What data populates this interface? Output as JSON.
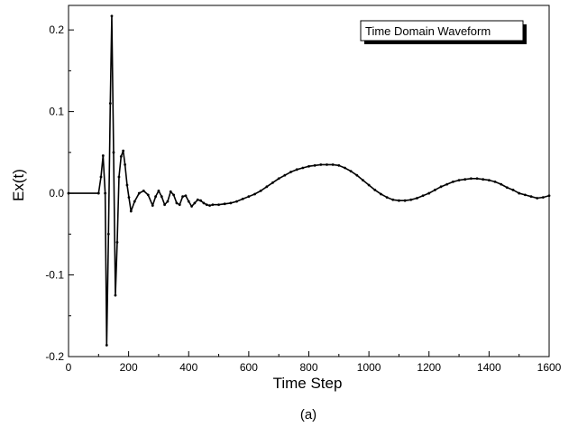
{
  "chart_data": {
    "type": "line",
    "title": "",
    "legend_label": "Time Domain Waveform",
    "legend_position": "top-right",
    "xlabel": "Time Step",
    "ylabel": "Ex(t)",
    "caption": "(a)",
    "xlim": [
      0,
      1600
    ],
    "ylim": [
      -0.2,
      0.23
    ],
    "xticks": [
      0,
      200,
      400,
      600,
      800,
      1000,
      1200,
      1400,
      1600
    ],
    "xtick_labels": [
      "0",
      "200",
      "400",
      "600",
      "800",
      "1000",
      "1200",
      "1400",
      "1600"
    ],
    "yticks": [
      -0.2,
      -0.1,
      0.0,
      0.1,
      0.2
    ],
    "ytick_labels": [
      "-0.2",
      "-0.1",
      "0.0",
      "0.1",
      "0.2"
    ],
    "grid": false,
    "series": [
      {
        "color": "#000000",
        "x": [
          0,
          100,
          108,
          115,
          122,
          127,
          133,
          139,
          144,
          150,
          156,
          162,
          168,
          175,
          182,
          188,
          195,
          201,
          208,
          220,
          235,
          250,
          265,
          280,
          290,
          300,
          310,
          320,
          330,
          340,
          350,
          360,
          370,
          380,
          390,
          400,
          410,
          420,
          430,
          440,
          450,
          460,
          470,
          480,
          500,
          520,
          540,
          560,
          580,
          600,
          620,
          640,
          660,
          680,
          700,
          720,
          740,
          760,
          780,
          800,
          820,
          840,
          860,
          880,
          900,
          920,
          940,
          960,
          980,
          1000,
          1020,
          1040,
          1060,
          1080,
          1100,
          1120,
          1140,
          1160,
          1180,
          1200,
          1220,
          1240,
          1260,
          1280,
          1300,
          1320,
          1340,
          1360,
          1380,
          1400,
          1420,
          1440,
          1460,
          1480,
          1500,
          1520,
          1540,
          1560,
          1580,
          1600
        ],
        "y": [
          0.0,
          0.0,
          0.02,
          0.046,
          0.0,
          -0.186,
          -0.05,
          0.11,
          0.217,
          0.05,
          -0.125,
          -0.06,
          0.02,
          0.045,
          0.052,
          0.035,
          0.01,
          -0.005,
          -0.022,
          -0.01,
          0.0,
          0.003,
          -0.002,
          -0.015,
          -0.004,
          0.003,
          -0.004,
          -0.014,
          -0.01,
          0.002,
          -0.002,
          -0.012,
          -0.014,
          -0.004,
          -0.003,
          -0.01,
          -0.016,
          -0.012,
          -0.008,
          -0.009,
          -0.012,
          -0.014,
          -0.015,
          -0.014,
          -0.014,
          -0.013,
          -0.012,
          -0.01,
          -0.007,
          -0.004,
          -0.001,
          0.003,
          0.008,
          0.013,
          0.018,
          0.022,
          0.026,
          0.029,
          0.031,
          0.033,
          0.034,
          0.035,
          0.035,
          0.035,
          0.034,
          0.031,
          0.027,
          0.022,
          0.016,
          0.01,
          0.004,
          -0.001,
          -0.005,
          -0.008,
          -0.009,
          -0.009,
          -0.008,
          -0.006,
          -0.003,
          0.0,
          0.004,
          0.008,
          0.011,
          0.014,
          0.016,
          0.017,
          0.018,
          0.018,
          0.017,
          0.016,
          0.014,
          0.011,
          0.007,
          0.004,
          0.0,
          -0.002,
          -0.004,
          -0.006,
          -0.005,
          -0.003
        ]
      }
    ]
  }
}
